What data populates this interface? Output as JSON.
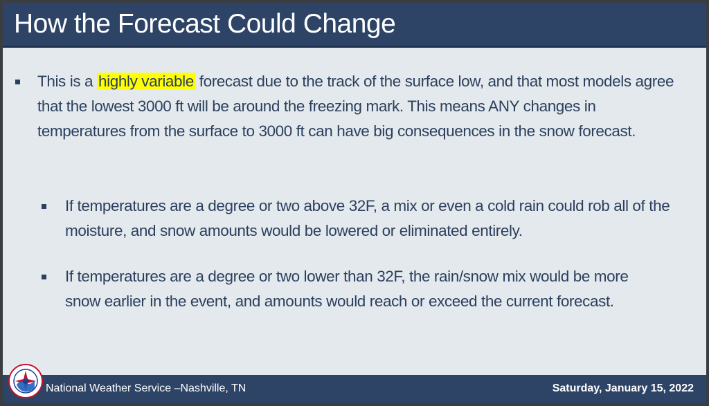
{
  "slide": {
    "title": "How the Forecast Could Change",
    "bullets": [
      {
        "pre": "This is a ",
        "highlight": "highly variable",
        "post": " forecast due to the track of the surface low, and that most models agree that the lowest 3000 ft will be around the freezing mark. This means ANY changes in temperatures from the surface to 3000 ft can have big consequences in the snow forecast."
      },
      {
        "text": "If temperatures are a degree or two above 32F, a mix or even a cold rain could rob all of the moisture, and snow amounts would be lowered or eliminated entirely."
      },
      {
        "text": "If temperatures are a degree or two lower than 32F, the rain/snow mix would be more snow earlier in the event, and amounts would reach or exceed the current forecast."
      }
    ]
  },
  "footer": {
    "office": "National Weather Service –Nashville, TN",
    "date": "Saturday, January 15, 2022",
    "logo_icon": "noaa-nws-logo-icon"
  },
  "colors": {
    "title_bar": "#2d4466",
    "body_bg": "#e3e9ec",
    "text": "#2b3f5e",
    "highlight": "#ffff00"
  }
}
